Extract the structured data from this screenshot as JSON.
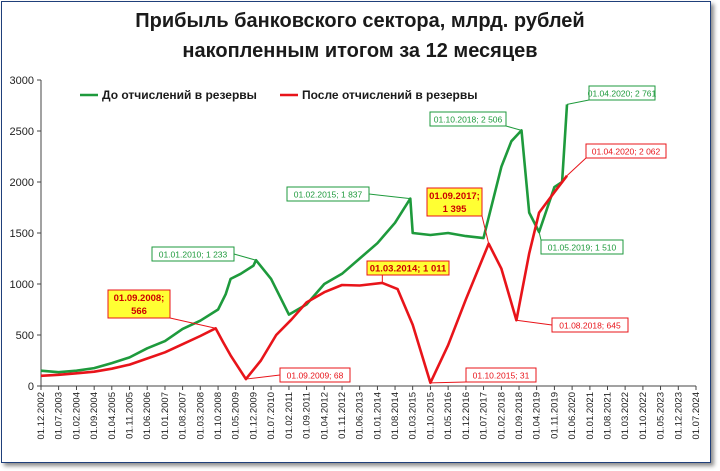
{
  "chart_data": {
    "type": "line",
    "title_line1": "Прибыль банковского сектора, млрд. рублей",
    "title_line2": "накопленным итогом за 12 месяцев",
    "xlabel": "",
    "ylabel": "",
    "ylim": [
      0,
      3000
    ],
    "yticks": [
      "0",
      "500",
      "1000",
      "1500",
      "2000",
      "2500",
      "3000"
    ],
    "xticks": [
      "01.12.2002",
      "01.07.2003",
      "01.02.2004",
      "01.09.2004",
      "01.04.2005",
      "01.11.2005",
      "01.06.2006",
      "01.01.2007",
      "01.08.2007",
      "01.03.2008",
      "01.10.2008",
      "01.05.2009",
      "01.12.2009",
      "01.07.2010",
      "01.02.2011",
      "01.09.2011",
      "01.04.2012",
      "01.11.2012",
      "01.06.2013",
      "01.01.2014",
      "01.08.2014",
      "01.03.2015",
      "01.10.2015",
      "01.05.2016",
      "01.12.2016",
      "01.07.2017",
      "01.02.2018",
      "01.09.2018",
      "01.04.2019",
      "01.11.2019",
      "01.06.2020",
      "01.01.2021",
      "01.08.2021",
      "01.03.2022",
      "01.10.2022",
      "01.05.2023",
      "01.12.2023",
      "01.07.2024"
    ],
    "legend_position": "top-left",
    "grid": false,
    "colors": {
      "green": "#1e9a3c",
      "red": "#e8141a"
    },
    "series": [
      {
        "name": "До отчислений в резервы",
        "color": "#1e9a3c",
        "points": [
          [
            "01.12.2002",
            150
          ],
          [
            "01.07.2003",
            135
          ],
          [
            "01.02.2004",
            150
          ],
          [
            "01.09.2004",
            175
          ],
          [
            "01.04.2005",
            225
          ],
          [
            "01.11.2005",
            280
          ],
          [
            "01.06.2006",
            370
          ],
          [
            "01.01.2007",
            440
          ],
          [
            "01.08.2007",
            560
          ],
          [
            "01.03.2008",
            640
          ],
          [
            "01.10.2008",
            750
          ],
          [
            "01.01.2009",
            900
          ],
          [
            "01.03.2009",
            1050
          ],
          [
            "01.07.2009",
            1100
          ],
          [
            "01.12.2009",
            1180
          ],
          [
            "01.01.2010",
            1233
          ],
          [
            "01.07.2010",
            1050
          ],
          [
            "01.11.2010",
            850
          ],
          [
            "01.02.2011",
            700
          ],
          [
            "01.09.2011",
            800
          ],
          [
            "01.04.2012",
            1000
          ],
          [
            "01.11.2012",
            1100
          ],
          [
            "01.06.2013",
            1250
          ],
          [
            "01.01.2014",
            1400
          ],
          [
            "01.08.2014",
            1600
          ],
          [
            "01.02.2015",
            1837
          ],
          [
            "01.03.2015",
            1500
          ],
          [
            "01.10.2015",
            1480
          ],
          [
            "01.05.2016",
            1500
          ],
          [
            "01.12.2016",
            1470
          ],
          [
            "01.07.2017",
            1450
          ],
          [
            "01.02.2018",
            2150
          ],
          [
            "01.06.2018",
            2400
          ],
          [
            "01.10.2018",
            2506
          ],
          [
            "01.01.2019",
            1700
          ],
          [
            "01.05.2019",
            1510
          ],
          [
            "01.11.2019",
            1950
          ],
          [
            "01.02.2020",
            2000
          ],
          [
            "01.04.2020",
            2761
          ]
        ]
      },
      {
        "name": "После отчислений в резервы",
        "color": "#e8141a",
        "points": [
          [
            "01.12.2002",
            100
          ],
          [
            "01.07.2003",
            110
          ],
          [
            "01.02.2004",
            125
          ],
          [
            "01.09.2004",
            140
          ],
          [
            "01.04.2005",
            170
          ],
          [
            "01.11.2005",
            210
          ],
          [
            "01.06.2006",
            270
          ],
          [
            "01.01.2007",
            330
          ],
          [
            "01.08.2007",
            410
          ],
          [
            "01.03.2008",
            490
          ],
          [
            "01.09.2008",
            566
          ],
          [
            "01.12.2008",
            430
          ],
          [
            "01.03.2009",
            300
          ],
          [
            "01.09.2009",
            68
          ],
          [
            "01.03.2010",
            250
          ],
          [
            "01.09.2010",
            500
          ],
          [
            "01.03.2011",
            650
          ],
          [
            "01.09.2011",
            820
          ],
          [
            "01.04.2012",
            920
          ],
          [
            "01.11.2012",
            990
          ],
          [
            "01.06.2013",
            985
          ],
          [
            "01.03.2014",
            1011
          ],
          [
            "01.09.2014",
            950
          ],
          [
            "01.03.2015",
            600
          ],
          [
            "01.10.2015",
            31
          ],
          [
            "01.05.2016",
            400
          ],
          [
            "01.12.2016",
            850
          ],
          [
            "01.09.2017",
            1395
          ],
          [
            "01.02.2018",
            1150
          ],
          [
            "01.08.2018",
            645
          ],
          [
            "01.01.2019",
            1300
          ],
          [
            "01.05.2019",
            1700
          ],
          [
            "01.11.2019",
            1900
          ],
          [
            "01.04.2020",
            2062
          ]
        ]
      }
    ],
    "annotations": [
      {
        "text": "01.01.2010; 1 233",
        "series": 0,
        "x": "01.01.2010",
        "y": 1233,
        "style": "green"
      },
      {
        "text": "01.02.2015; 1 837",
        "series": 0,
        "x": "01.02.2015",
        "y": 1837,
        "style": "green"
      },
      {
        "text": "01.10.2018; 2 506",
        "series": 0,
        "x": "01.10.2018",
        "y": 2506,
        "style": "green"
      },
      {
        "text": "01.04.2020; 2 761",
        "series": 0,
        "x": "01.04.2020",
        "y": 2761,
        "style": "green"
      },
      {
        "text": "01.05.2019; 1 510",
        "series": 0,
        "x": "01.05.2019",
        "y": 1510,
        "style": "green"
      },
      {
        "text": "01.09.2008;",
        "text2": "566",
        "series": 1,
        "x": "01.09.2008",
        "y": 566,
        "style": "yellow"
      },
      {
        "text": "01.09.2009; 68",
        "series": 1,
        "x": "01.09.2009",
        "y": 68,
        "style": "red"
      },
      {
        "text": "01.03.2014; 1 011",
        "series": 1,
        "x": "01.03.2014",
        "y": 1011,
        "style": "yellow"
      },
      {
        "text": "01.09.2017;",
        "text2": "1 395",
        "series": 1,
        "x": "01.09.2017",
        "y": 1395,
        "style": "yellow"
      },
      {
        "text": "01.10.2015; 31",
        "series": 1,
        "x": "01.10.2015",
        "y": 31,
        "style": "red"
      },
      {
        "text": "01.08.2018; 645",
        "series": 1,
        "x": "01.08.2018",
        "y": 645,
        "style": "red"
      },
      {
        "text": "01.04.2020; 2 062",
        "series": 1,
        "x": "01.04.2020",
        "y": 2062,
        "style": "red"
      }
    ]
  }
}
